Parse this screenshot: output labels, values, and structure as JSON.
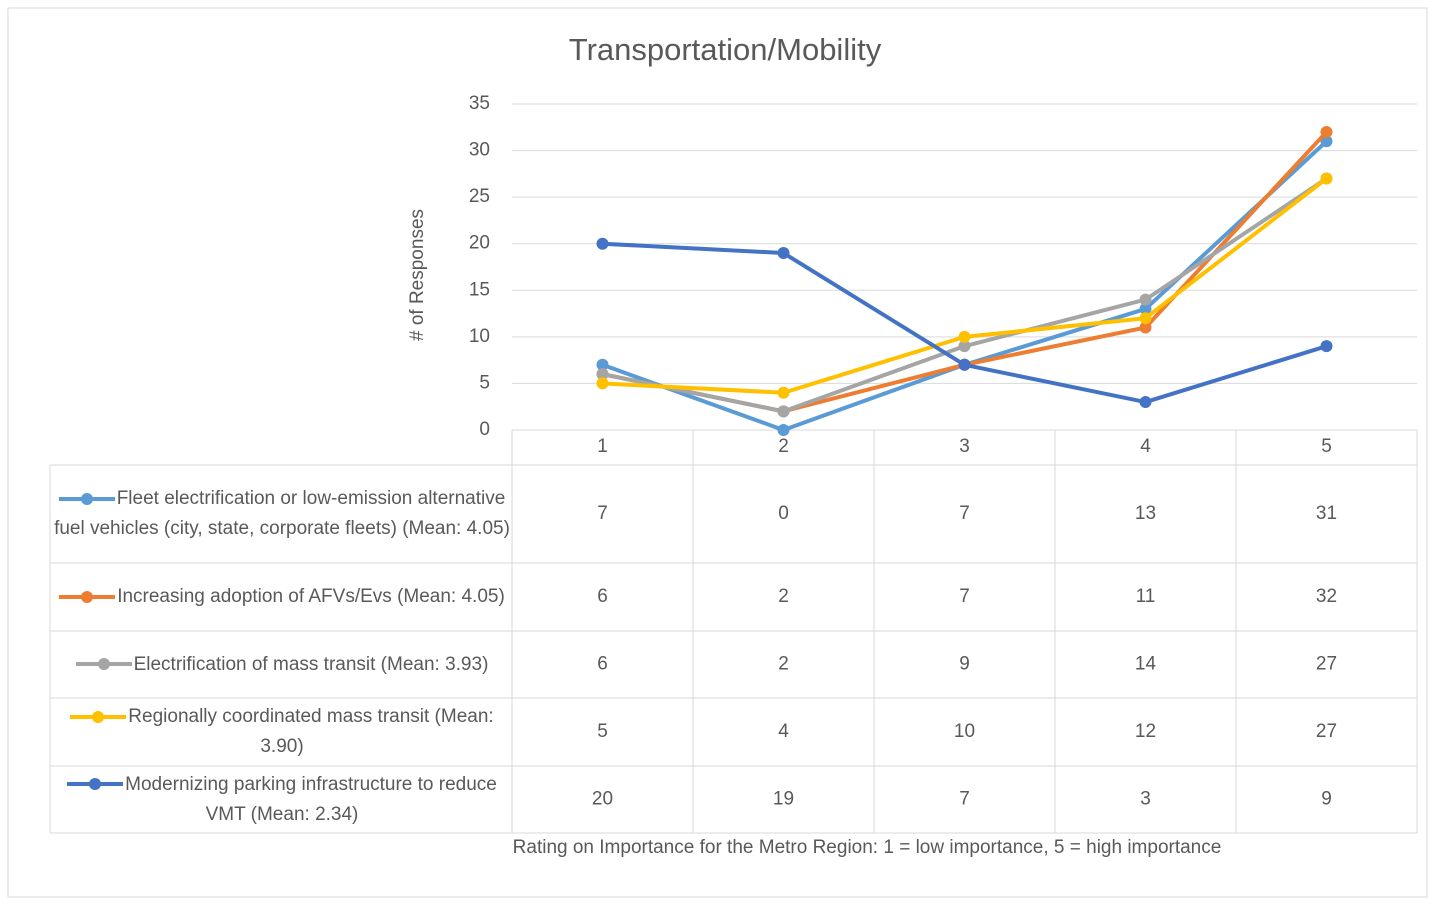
{
  "chart_data": {
    "type": "line",
    "title": "Transportation/Mobility",
    "y_label": "# of Responses",
    "x_label": "Rating on Importance for the Metro Region: 1 = low importance, 5 = high importance",
    "categories": [
      "1",
      "2",
      "3",
      "4",
      "5"
    ],
    "ylim": [
      0,
      35
    ],
    "yticks": [
      0,
      5,
      10,
      15,
      20,
      25,
      30,
      35
    ],
    "grid": true,
    "series": [
      {
        "name": "Fleet electrification or low-emission alternative fuel vehicles (city, state, corporate fleets) (Mean: 4.05)",
        "color": "#5B9BD5",
        "values": [
          7,
          0,
          7,
          13,
          31
        ]
      },
      {
        "name": "Increasing adoption of AFVs/Evs (Mean: 4.05)",
        "color": "#ED7D31",
        "values": [
          6,
          2,
          7,
          11,
          32
        ]
      },
      {
        "name": "Electrification of mass transit (Mean: 3.93)",
        "color": "#A5A5A5",
        "values": [
          6,
          2,
          9,
          14,
          27
        ]
      },
      {
        "name": "Regionally coordinated mass transit (Mean: 3.90)",
        "color": "#FFC000",
        "values": [
          5,
          4,
          10,
          12,
          27
        ]
      },
      {
        "name": "Modernizing parking infrastructure to reduce VMT (Mean: 2.34)",
        "color": "#4472C4",
        "values": [
          20,
          19,
          7,
          3,
          9
        ]
      }
    ]
  }
}
